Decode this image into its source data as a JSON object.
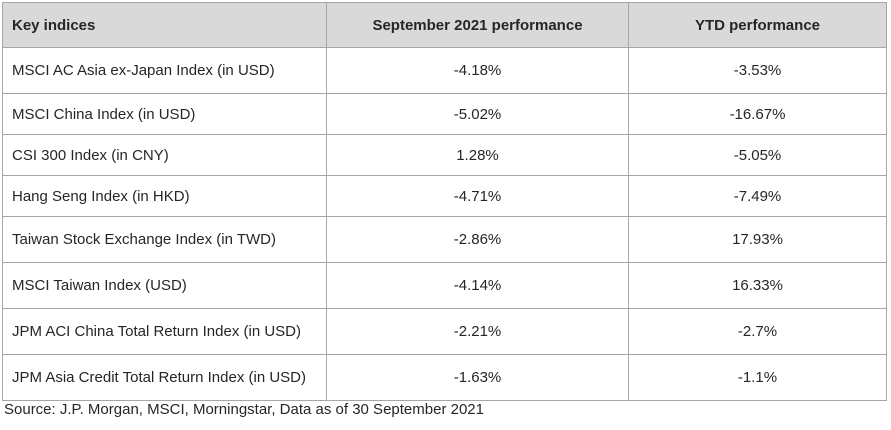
{
  "table": {
    "headers": [
      "Key indices",
      "September 2021 performance",
      "YTD performance"
    ],
    "rows": [
      {
        "name": "MSCI AC Asia ex-Japan Index (in USD)",
        "september_2021": "-4.18%",
        "ytd": "-3.53%"
      },
      {
        "name": "MSCI China Index (in USD)",
        "september_2021": "-5.02%",
        "ytd": "-16.67%"
      },
      {
        "name": "CSI 300 Index (in CNY)",
        "september_2021": "1.28%",
        "ytd": "-5.05%"
      },
      {
        "name": "Hang Seng Index (in HKD)",
        "september_2021": "-4.71%",
        "ytd": "-7.49%"
      },
      {
        "name": "Taiwan Stock Exchange Index (in TWD)",
        "september_2021": "-2.86%",
        "ytd": "17.93%"
      },
      {
        "name": "MSCI Taiwan Index (USD)",
        "september_2021": "-4.14%",
        "ytd": "16.33%"
      },
      {
        "name": "JPM ACI China Total Return Index (in USD)",
        "september_2021": "-2.21%",
        "ytd": "-2.7%"
      },
      {
        "name": "JPM Asia Credit Total Return Index (in USD)",
        "september_2021": "-1.63%",
        "ytd": "-1.1%"
      }
    ]
  },
  "source_note": "Source: J.P. Morgan, MSCI, Morningstar, Data as of 30 September 2021"
}
